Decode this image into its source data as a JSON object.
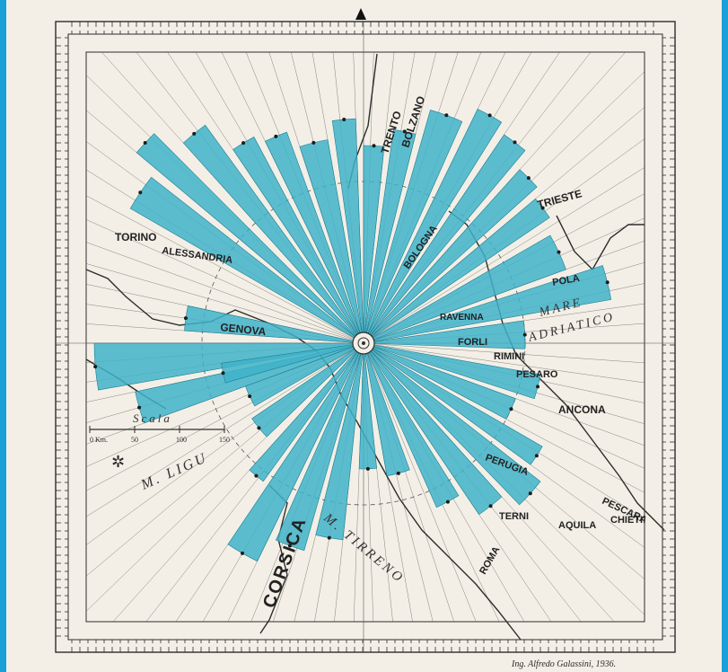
{
  "colors": {
    "paper": "#f3efe6",
    "ink": "#2d2d2d",
    "wedge_fill": "#3fb3c9",
    "wedge_stroke": "#1d7f93",
    "frame_blue": "#1aa0d8"
  },
  "north_marker": "north-arrow",
  "places": {
    "trento": "TRENTO",
    "bolzano": "BOLZANO",
    "torino": "TORINO",
    "alessandria": "ALESSANDRIA",
    "genova": "GENOVA",
    "trieste": "TRIESTE",
    "pola": "POLA",
    "ancona": "ANCONA",
    "pescara": "PESCARA",
    "chieti": "CHIETI",
    "aquila": "AQUILA",
    "terni": "TERNI",
    "roma": "ROMA",
    "perugia": "PERUGIA",
    "rimini": "RIMINI",
    "pesaro": "PESARO",
    "forli": "FORLI",
    "bologna": "BOLOGNA",
    "ravenna": "RAVENNA",
    "corsica": "CORSICA"
  },
  "seas": {
    "adriatico_1": "MARE",
    "adriatico_2": "ADRIATICO",
    "ligure": "M. LIGU",
    "tirreno": "M. TIRRENO"
  },
  "scale": {
    "title": "Scala",
    "ticks": [
      "0 Km.",
      "50",
      "100",
      "150"
    ]
  },
  "signature": "Ing. Alfredo Galassini, 1936."
}
